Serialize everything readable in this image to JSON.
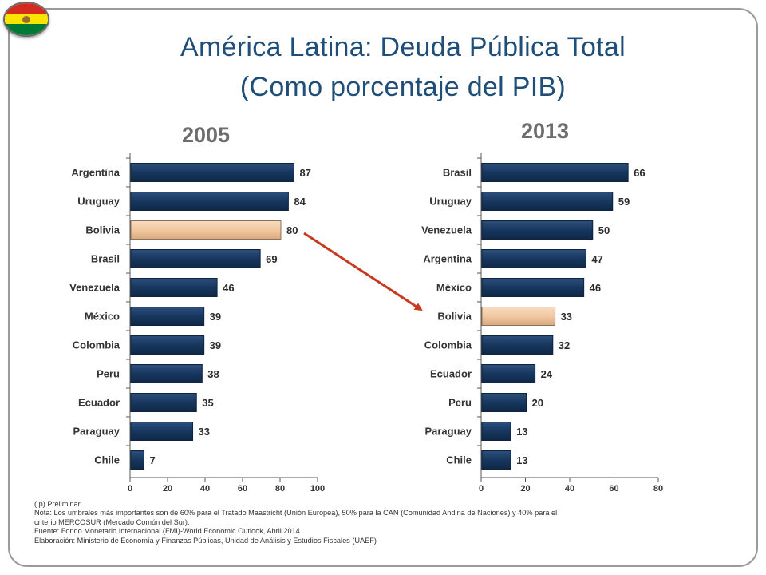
{
  "title": {
    "line1": "América Latina: Deuda Pública Total",
    "line2": "(Como porcentaje del PIB)"
  },
  "colors": {
    "title": "#1f4e79",
    "bar": "#17375e",
    "highlight_fill": "#f1c8a0",
    "highlight_stroke": "#8d6e58",
    "arrow": "#c8391f"
  },
  "chart_data": [
    {
      "type": "bar",
      "orientation": "horizontal",
      "title": "2005",
      "categories": [
        "Argentina",
        "Uruguay",
        "Bolivia",
        "Brasil",
        "Venezuela",
        "México",
        "Colombia",
        "Peru",
        "Ecuador",
        "Paraguay",
        "Chile"
      ],
      "values": [
        87,
        84,
        80,
        69,
        46,
        39,
        39,
        38,
        35,
        33,
        7
      ],
      "xlim": [
        0,
        100
      ],
      "xticks": [
        0,
        20,
        40,
        60,
        80,
        100
      ],
      "highlight": "Bolivia"
    },
    {
      "type": "bar",
      "orientation": "horizontal",
      "title": "2013",
      "categories": [
        "Brasil",
        "Uruguay",
        "Venezuela",
        "Argentina",
        "México",
        "Bolivia",
        "Colombia",
        "Ecuador",
        "Peru",
        "Paraguay",
        "Chile"
      ],
      "values": [
        66,
        59,
        50,
        47,
        46,
        33,
        32,
        24,
        20,
        13,
        13
      ],
      "xlim": [
        0,
        80
      ],
      "xticks": [
        0,
        20,
        40,
        60,
        80
      ],
      "highlight": "Bolivia"
    }
  ],
  "notes": [
    "( p) Preliminar",
    "Nota: Los umbrales más importantes son de 60% para el Tratado Maastricht (Unión Europea), 50% para la CAN (Comunidad Andina de Naciones) y 40% para el",
    "criterio MERCOSUR (Mercado Común del Sur).",
    "Fuente: Fondo Monetario Internacional (FMI)-World Economic Outlook, Abril 2014",
    "Elaboración: Ministerio de Economía y Finanzas Públicas, Unidad de Análisis y Estudios Fiscales (UAEF)"
  ]
}
